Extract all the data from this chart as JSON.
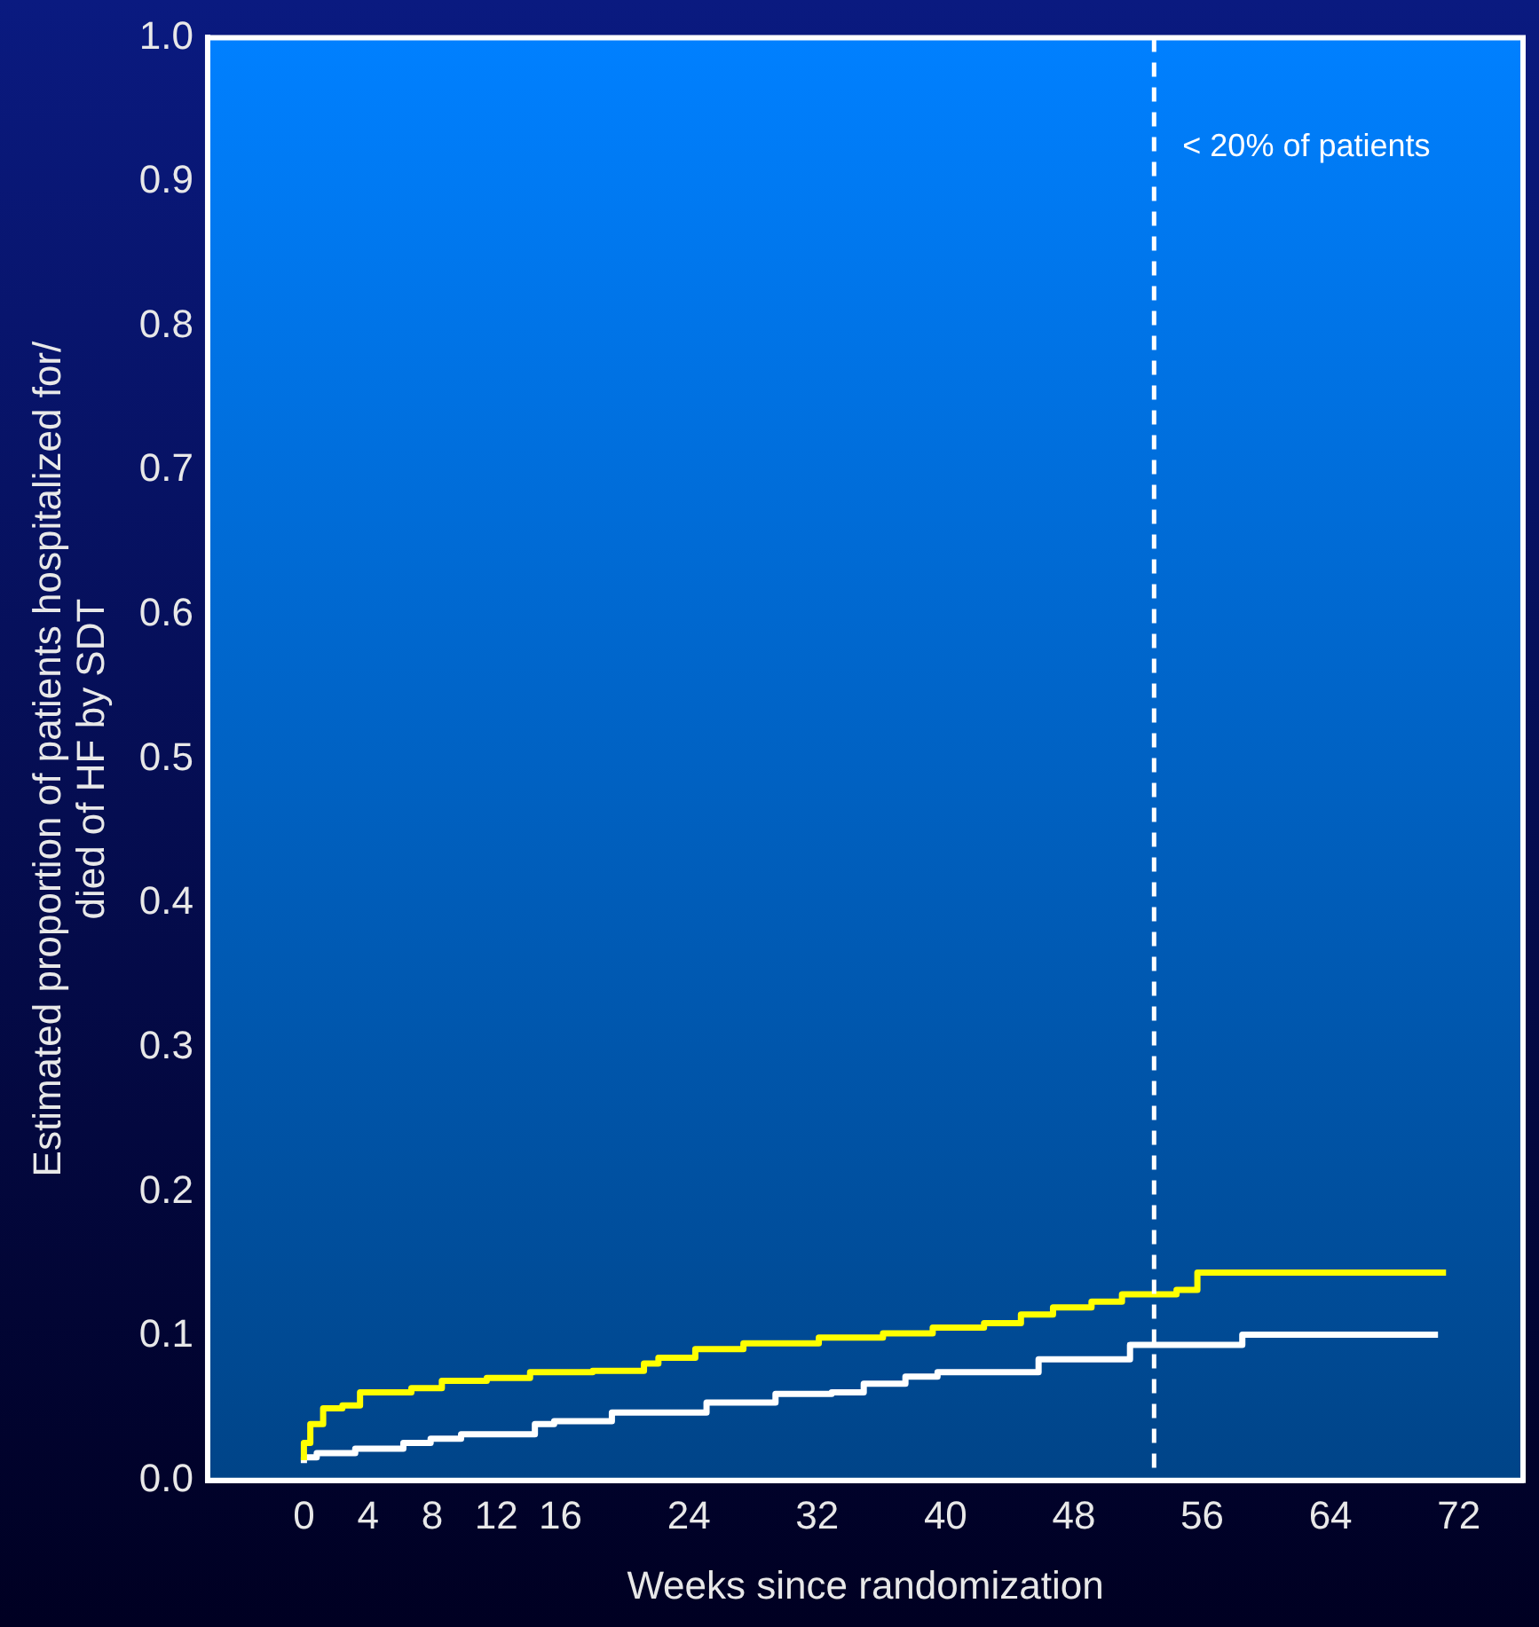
{
  "chart_data": {
    "type": "step",
    "xlabel": "Weeks since randomization",
    "ylabel": "Estimated proportion of patients hospitalized for/\ndied of HF by SDT",
    "xlim": [
      -6,
      76
    ],
    "xticks": [
      0,
      4,
      8,
      12,
      16,
      24,
      32,
      40,
      48,
      56,
      64,
      72
    ],
    "ylim": [
      0,
      1
    ],
    "yticks": [
      {
        "value": 0,
        "label": "0.0"
      },
      {
        "value": 0.1,
        "label": "0.1"
      },
      {
        "value": 0.2,
        "label": "0.2"
      },
      {
        "value": 0.3,
        "label": "0.3"
      },
      {
        "value": 0.4,
        "label": "0.4"
      },
      {
        "value": 0.5,
        "label": "0.5"
      },
      {
        "value": 0.6,
        "label": "0.6"
      },
      {
        "value": 0.7,
        "label": "0.7"
      },
      {
        "value": 0.8,
        "label": "0.8"
      },
      {
        "value": 0.9,
        "label": "0.9"
      },
      {
        "value": 1,
        "label": "1.0"
      }
    ],
    "series": [
      {
        "color": "#ffff00",
        "x": [
          0,
          0.4,
          1.2,
          2.4,
          3.5,
          6.7,
          8.6,
          11.4,
          14.1,
          18,
          21.2,
          22.1,
          24.4,
          27.4,
          32.1,
          36.1,
          39.2,
          42.4,
          44.7,
          46.7,
          49.1,
          51,
          54.4,
          55.7,
          60.6,
          71.2
        ],
        "values": [
          0.014,
          0.026,
          0.039,
          0.05,
          0.052,
          0.061,
          0.064,
          0.069,
          0.071,
          0.075,
          0.076,
          0.081,
          0.085,
          0.091,
          0.095,
          0.099,
          0.102,
          0.106,
          0.109,
          0.115,
          0.12,
          0.124,
          0.129,
          0.132,
          0.144,
          0.144
        ]
      },
      {
        "color": "#ffffff",
        "x": [
          0,
          0.8,
          3.2,
          6.2,
          7.9,
          9.8,
          14.4,
          15.6,
          19.2,
          25.1,
          29.4,
          32.9,
          34.9,
          37.5,
          39.5,
          45.8,
          51.5,
          58.5,
          60.2,
          70.7
        ],
        "values": [
          0.012,
          0.016,
          0.019,
          0.022,
          0.026,
          0.029,
          0.032,
          0.039,
          0.041,
          0.047,
          0.054,
          0.06,
          0.061,
          0.067,
          0.072,
          0.075,
          0.084,
          0.094,
          0.101,
          0.101
        ]
      }
    ],
    "ref_lines": [
      {
        "axis": "x",
        "value": 53,
        "label": "< 20% of patients",
        "color": "#ffffff",
        "line_style": "dashed"
      }
    ],
    "grid": false,
    "legend": false
  }
}
